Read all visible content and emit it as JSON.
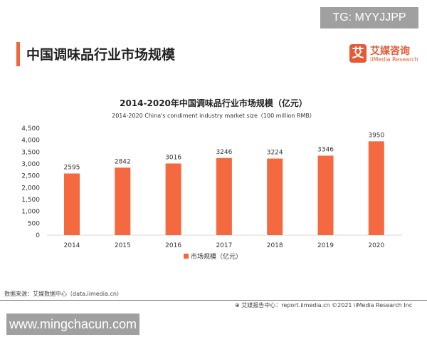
{
  "header": {
    "title": "中国调味品行业市场规模",
    "logo_mark": "艾",
    "logo_cn": "艾媒咨询",
    "logo_en": "iiMedia Research"
  },
  "overlay": {
    "tg": "TG: MYYJJPP",
    "watermark": "www.mingchacun.com"
  },
  "colors": {
    "accent": "#f0663c",
    "bar": "#f4693f"
  },
  "chart_data": {
    "type": "bar",
    "title": "2014-2020年中国调味品行业市场规模（亿元）",
    "subtitle": "2014-2020 China's condiment industry market size（100 million RMB）",
    "categories": [
      "2014",
      "2015",
      "2016",
      "2017",
      "2018",
      "2019",
      "2020"
    ],
    "series": [
      {
        "name": "市场规模（亿元）",
        "values": [
          2595,
          2842,
          3016,
          3246,
          3224,
          3346,
          3950
        ]
      }
    ],
    "ylim": [
      0,
      4500
    ],
    "yticks": [
      "0",
      "500",
      "1,000",
      "1,500",
      "2,000",
      "2,500",
      "3,000",
      "3,500",
      "4,000",
      "4,500"
    ],
    "grid": false,
    "legend": "bottom"
  },
  "footer": {
    "source": "数据来源：艾媒数据中心（data.iimedia.cn）",
    "credit": "艾媒报告中心：report.iimedia.cn   ©2021  iiMedia Research  Inc"
  }
}
